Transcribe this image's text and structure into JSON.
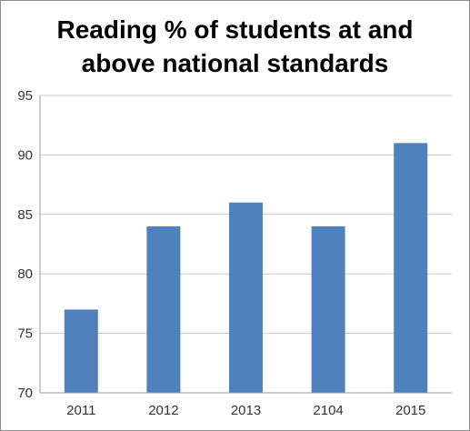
{
  "chart_data": {
    "type": "bar",
    "title_lines": [
      "Reading % of students at and",
      "above national standards"
    ],
    "categories": [
      "2011",
      "2012",
      "2013",
      "2104",
      "2015"
    ],
    "values": [
      77,
      84,
      86,
      84,
      91
    ],
    "ylim": [
      70,
      95
    ],
    "yticks": [
      70,
      75,
      80,
      85,
      90,
      95
    ],
    "grid": true,
    "legend": "none",
    "bar_color": "#4f81bd",
    "grid_color": "#c8c8c8"
  }
}
